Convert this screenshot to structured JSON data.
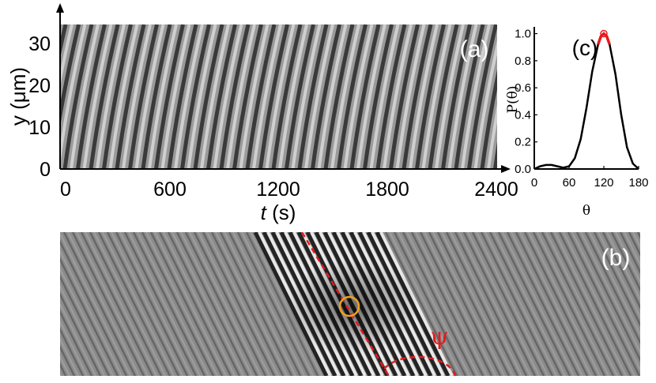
{
  "panels": {
    "a": {
      "label": "(a)"
    },
    "b": {
      "label": "(b)",
      "angle_symbol": "ψ"
    },
    "c": {
      "label": "(c)"
    }
  },
  "colors": {
    "stripe_dark": "#3a3a3a",
    "stripe_light": "#cfcfcf",
    "field_gray": "#8c8c8c",
    "marker_red": "#e41a1c",
    "circle_orange": "#f0a020",
    "curve": "#000000",
    "peak_highlight": "#e41a1c"
  },
  "chart_data": [
    {
      "panel": "(a)",
      "type": "heatmap",
      "title": "",
      "xlabel_var": "t",
      "xlabel_unit": " (s)",
      "ylabel": "y (μm)",
      "x_ticks": [
        "0",
        "600",
        "1200",
        "1800",
        "2400"
      ],
      "y_ticks": [
        "0",
        "10",
        "20",
        "30"
      ],
      "xlim": [
        0,
        2400
      ],
      "ylim": [
        0,
        35
      ],
      "description_values": {
        "stripe_period_s": 75,
        "stripe_drift_s_per_um": 4.5
      }
    },
    {
      "panel": "(c)",
      "type": "line",
      "xlabel": "θ",
      "ylabel": "P(θ)",
      "x_ticks": [
        "0",
        "60",
        "120",
        "180"
      ],
      "y_ticks": [
        "0.0",
        "0.2",
        "0.4",
        "0.6",
        "0.8",
        "1.0"
      ],
      "xlim": [
        0,
        180
      ],
      "ylim": [
        0,
        1.05
      ],
      "series": [
        {
          "x": [
            0,
            10,
            20,
            30,
            40,
            50,
            60,
            70,
            80,
            90,
            100,
            110,
            115,
            120,
            125,
            130,
            140,
            150,
            160,
            170,
            180
          ],
          "y": [
            0.0,
            0.02,
            0.03,
            0.03,
            0.02,
            0.01,
            0.02,
            0.08,
            0.22,
            0.45,
            0.72,
            0.92,
            0.98,
            1.0,
            0.98,
            0.92,
            0.7,
            0.4,
            0.16,
            0.04,
            0.0
          ]
        }
      ],
      "peak": {
        "x": 120,
        "y": 1.0
      },
      "highlight_range": [
        105,
        135
      ]
    }
  ]
}
